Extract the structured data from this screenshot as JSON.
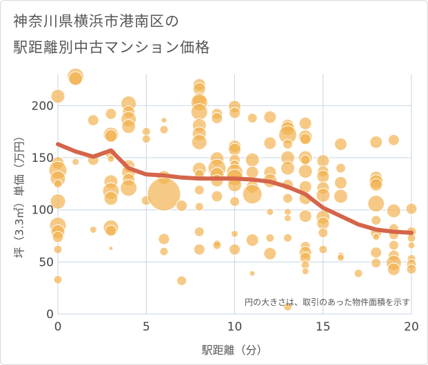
{
  "title_lines": [
    "神奈川県横浜市港南区の",
    "駅距離別中古マンション価格"
  ],
  "colors": {
    "bubble": "#f2b14c",
    "line": "#d4654a",
    "grid": "#c5d6e4",
    "plot_bg": "#ffffff"
  },
  "chart_data": {
    "type": "scatter",
    "xlabel": "駅距離（分）",
    "ylabel": "坪（3.3㎡）単価（万円）",
    "xlim": [
      0,
      20
    ],
    "ylim": [
      0,
      230
    ],
    "xticks": [
      0,
      5,
      10,
      15,
      20
    ],
    "yticks": [
      0,
      50,
      100,
      150,
      200
    ],
    "annotation": "円の大きさは、取引のあった物件面積を示す",
    "trend_line": {
      "x": [
        0,
        1,
        2,
        3,
        4,
        5,
        6,
        7,
        8,
        9,
        10,
        11,
        12,
        13,
        14,
        15,
        16,
        17,
        18,
        19,
        20
      ],
      "y": [
        163,
        156,
        151,
        157,
        140,
        134,
        133,
        131,
        130,
        130,
        130,
        129,
        127,
        122,
        115,
        102,
        94,
        86,
        81,
        79,
        78
      ]
    },
    "points": [
      {
        "x": 0,
        "y": 209,
        "s": 10
      },
      {
        "x": 0,
        "y": 145,
        "s": 9
      },
      {
        "x": 0,
        "y": 138,
        "s": 13
      },
      {
        "x": 0,
        "y": 130,
        "s": 11
      },
      {
        "x": 0,
        "y": 125,
        "s": 6
      },
      {
        "x": 0,
        "y": 108,
        "s": 11
      },
      {
        "x": 0,
        "y": 85,
        "s": 12
      },
      {
        "x": 0,
        "y": 79,
        "s": 10
      },
      {
        "x": 0,
        "y": 74,
        "s": 8
      },
      {
        "x": 0,
        "y": 62,
        "s": 6
      },
      {
        "x": 0,
        "y": 33,
        "s": 6
      },
      {
        "x": 1,
        "y": 228,
        "s": 12
      },
      {
        "x": 1,
        "y": 226,
        "s": 10
      },
      {
        "x": 1,
        "y": 146,
        "s": 5
      },
      {
        "x": 2,
        "y": 186,
        "s": 8
      },
      {
        "x": 2,
        "y": 148,
        "s": 8
      },
      {
        "x": 2,
        "y": 81,
        "s": 5
      },
      {
        "x": 3,
        "y": 192,
        "s": 8
      },
      {
        "x": 3,
        "y": 172,
        "s": 11
      },
      {
        "x": 3,
        "y": 171,
        "s": 9
      },
      {
        "x": 3,
        "y": 154,
        "s": 8
      },
      {
        "x": 3,
        "y": 149,
        "s": 5
      },
      {
        "x": 3,
        "y": 127,
        "s": 10
      },
      {
        "x": 3,
        "y": 118,
        "s": 12
      },
      {
        "x": 3,
        "y": 111,
        "s": 10
      },
      {
        "x": 3,
        "y": 83,
        "s": 11
      },
      {
        "x": 3,
        "y": 80,
        "s": 8
      },
      {
        "x": 3,
        "y": 63,
        "s": 3
      },
      {
        "x": 4,
        "y": 202,
        "s": 11
      },
      {
        "x": 4,
        "y": 194,
        "s": 9
      },
      {
        "x": 4,
        "y": 187,
        "s": 11
      },
      {
        "x": 4,
        "y": 180,
        "s": 10
      },
      {
        "x": 4,
        "y": 142,
        "s": 9
      },
      {
        "x": 4,
        "y": 136,
        "s": 10
      },
      {
        "x": 4,
        "y": 129,
        "s": 9
      },
      {
        "x": 4,
        "y": 121,
        "s": 12
      },
      {
        "x": 5,
        "y": 175,
        "s": 6
      },
      {
        "x": 5,
        "y": 168,
        "s": 6
      },
      {
        "x": 5,
        "y": 109,
        "s": 7
      },
      {
        "x": 6,
        "y": 186,
        "s": 4
      },
      {
        "x": 6,
        "y": 177,
        "s": 6
      },
      {
        "x": 6,
        "y": 131,
        "s": 10
      },
      {
        "x": 6,
        "y": 115,
        "s": 24
      },
      {
        "x": 6,
        "y": 72,
        "s": 8
      },
      {
        "x": 6,
        "y": 60,
        "s": 6
      },
      {
        "x": 7,
        "y": 104,
        "s": 8
      },
      {
        "x": 7,
        "y": 32,
        "s": 7
      },
      {
        "x": 8,
        "y": 220,
        "s": 9
      },
      {
        "x": 8,
        "y": 216,
        "s": 9
      },
      {
        "x": 8,
        "y": 206,
        "s": 10
      },
      {
        "x": 8,
        "y": 203,
        "s": 12
      },
      {
        "x": 8,
        "y": 194,
        "s": 12
      },
      {
        "x": 8,
        "y": 181,
        "s": 10
      },
      {
        "x": 8,
        "y": 173,
        "s": 10
      },
      {
        "x": 8,
        "y": 165,
        "s": 11
      },
      {
        "x": 8,
        "y": 139,
        "s": 10
      },
      {
        "x": 8,
        "y": 134,
        "s": 7
      },
      {
        "x": 8,
        "y": 119,
        "s": 7
      },
      {
        "x": 8,
        "y": 103,
        "s": 6
      },
      {
        "x": 8,
        "y": 79,
        "s": 7
      },
      {
        "x": 8,
        "y": 62,
        "s": 8
      },
      {
        "x": 9,
        "y": 192,
        "s": 8
      },
      {
        "x": 9,
        "y": 188,
        "s": 8
      },
      {
        "x": 9,
        "y": 149,
        "s": 10
      },
      {
        "x": 9,
        "y": 140,
        "s": 13
      },
      {
        "x": 9,
        "y": 134,
        "s": 10
      },
      {
        "x": 9,
        "y": 128,
        "s": 9
      },
      {
        "x": 9,
        "y": 113,
        "s": 8
      },
      {
        "x": 9,
        "y": 68,
        "s": 5
      },
      {
        "x": 9,
        "y": 66,
        "s": 6
      },
      {
        "x": 10,
        "y": 199,
        "s": 9
      },
      {
        "x": 10,
        "y": 193,
        "s": 8
      },
      {
        "x": 10,
        "y": 161,
        "s": 9
      },
      {
        "x": 10,
        "y": 158,
        "s": 9
      },
      {
        "x": 10,
        "y": 148,
        "s": 8
      },
      {
        "x": 10,
        "y": 143,
        "s": 7
      },
      {
        "x": 10,
        "y": 136,
        "s": 12
      },
      {
        "x": 10,
        "y": 131,
        "s": 12
      },
      {
        "x": 10,
        "y": 124,
        "s": 10
      },
      {
        "x": 10,
        "y": 108,
        "s": 7
      },
      {
        "x": 10,
        "y": 77,
        "s": 5
      },
      {
        "x": 10,
        "y": 62,
        "s": 8
      },
      {
        "x": 11,
        "y": 188,
        "s": 7
      },
      {
        "x": 11,
        "y": 148,
        "s": 10
      },
      {
        "x": 11,
        "y": 136,
        "s": 9
      },
      {
        "x": 11,
        "y": 122,
        "s": 9
      },
      {
        "x": 11,
        "y": 115,
        "s": 14
      },
      {
        "x": 11,
        "y": 71,
        "s": 9
      },
      {
        "x": 11,
        "y": 39,
        "s": 4
      },
      {
        "x": 12,
        "y": 189,
        "s": 9
      },
      {
        "x": 12,
        "y": 164,
        "s": 9
      },
      {
        "x": 12,
        "y": 136,
        "s": 9
      },
      {
        "x": 12,
        "y": 128,
        "s": 10
      },
      {
        "x": 12,
        "y": 98,
        "s": 5
      },
      {
        "x": 12,
        "y": 73,
        "s": 6
      },
      {
        "x": 12,
        "y": 58,
        "s": 9
      },
      {
        "x": 13,
        "y": 181,
        "s": 9
      },
      {
        "x": 13,
        "y": 178,
        "s": 10
      },
      {
        "x": 13,
        "y": 172,
        "s": 13
      },
      {
        "x": 13,
        "y": 163,
        "s": 7
      },
      {
        "x": 13,
        "y": 150,
        "s": 10
      },
      {
        "x": 13,
        "y": 140,
        "s": 10
      },
      {
        "x": 13,
        "y": 124,
        "s": 8
      },
      {
        "x": 13,
        "y": 111,
        "s": 7
      },
      {
        "x": 13,
        "y": 98,
        "s": 5
      },
      {
        "x": 13,
        "y": 92,
        "s": 5
      },
      {
        "x": 13,
        "y": 73,
        "s": 6
      },
      {
        "x": 13,
        "y": 7,
        "s": 6
      },
      {
        "x": 14,
        "y": 183,
        "s": 9
      },
      {
        "x": 14,
        "y": 170,
        "s": 10
      },
      {
        "x": 14,
        "y": 168,
        "s": 8
      },
      {
        "x": 14,
        "y": 150,
        "s": 10
      },
      {
        "x": 14,
        "y": 148,
        "s": 7
      },
      {
        "x": 14,
        "y": 137,
        "s": 10
      },
      {
        "x": 14,
        "y": 122,
        "s": 9
      },
      {
        "x": 14,
        "y": 111,
        "s": 9
      },
      {
        "x": 14,
        "y": 94,
        "s": 9
      },
      {
        "x": 14,
        "y": 65,
        "s": 7
      },
      {
        "x": 14,
        "y": 59,
        "s": 9
      },
      {
        "x": 14,
        "y": 54,
        "s": 8
      },
      {
        "x": 14,
        "y": 47,
        "s": 6
      },
      {
        "x": 14,
        "y": 41,
        "s": 5
      },
      {
        "x": 15,
        "y": 147,
        "s": 9
      },
      {
        "x": 15,
        "y": 137,
        "s": 8
      },
      {
        "x": 15,
        "y": 132,
        "s": 9
      },
      {
        "x": 15,
        "y": 121,
        "s": 9
      },
      {
        "x": 15,
        "y": 114,
        "s": 10
      },
      {
        "x": 15,
        "y": 93,
        "s": 10
      },
      {
        "x": 15,
        "y": 87,
        "s": 9
      },
      {
        "x": 15,
        "y": 78,
        "s": 7
      },
      {
        "x": 15,
        "y": 62,
        "s": 6
      },
      {
        "x": 16,
        "y": 163,
        "s": 9
      },
      {
        "x": 16,
        "y": 140,
        "s": 7
      },
      {
        "x": 16,
        "y": 126,
        "s": 9
      },
      {
        "x": 16,
        "y": 113,
        "s": 10
      },
      {
        "x": 16,
        "y": 56,
        "s": 5
      },
      {
        "x": 16,
        "y": 54,
        "s": 5
      },
      {
        "x": 17,
        "y": 39,
        "s": 6
      },
      {
        "x": 18,
        "y": 165,
        "s": 9
      },
      {
        "x": 18,
        "y": 131,
        "s": 9
      },
      {
        "x": 18,
        "y": 127,
        "s": 10
      },
      {
        "x": 18,
        "y": 124,
        "s": 9
      },
      {
        "x": 18,
        "y": 106,
        "s": 12
      },
      {
        "x": 18,
        "y": 90,
        "s": 7
      },
      {
        "x": 18,
        "y": 78,
        "s": 8
      },
      {
        "x": 18,
        "y": 74,
        "s": 5
      },
      {
        "x": 18,
        "y": 59,
        "s": 8
      },
      {
        "x": 18,
        "y": 49,
        "s": 7
      },
      {
        "x": 19,
        "y": 167,
        "s": 8
      },
      {
        "x": 19,
        "y": 99,
        "s": 10
      },
      {
        "x": 19,
        "y": 82,
        "s": 7
      },
      {
        "x": 19,
        "y": 76,
        "s": 7
      },
      {
        "x": 19,
        "y": 66,
        "s": 7
      },
      {
        "x": 19,
        "y": 56,
        "s": 8
      },
      {
        "x": 19,
        "y": 49,
        "s": 11
      },
      {
        "x": 19,
        "y": 43,
        "s": 9
      },
      {
        "x": 20,
        "y": 101,
        "s": 8
      },
      {
        "x": 20,
        "y": 79,
        "s": 7
      },
      {
        "x": 20,
        "y": 73,
        "s": 6
      },
      {
        "x": 20,
        "y": 66,
        "s": 5
      },
      {
        "x": 20,
        "y": 53,
        "s": 6
      },
      {
        "x": 20,
        "y": 48,
        "s": 7
      },
      {
        "x": 20,
        "y": 43,
        "s": 7
      }
    ]
  }
}
